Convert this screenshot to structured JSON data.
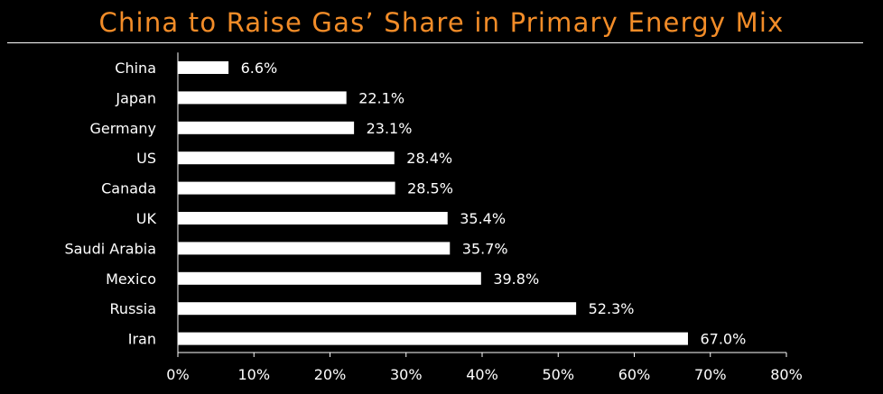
{
  "title": "China to Raise Gas’ Share in Primary Energy Mix",
  "colors": {
    "background": "#000000",
    "title": "#F28C28",
    "bars": "#FFFFFF",
    "text": "#FFFFFF"
  },
  "chart_data": {
    "type": "bar",
    "orientation": "horizontal",
    "title": "China to Raise Gas’ Share in Primary Energy Mix",
    "xlabel": "",
    "ylabel": "",
    "xlim": [
      0,
      80
    ],
    "x_ticks": [
      0,
      10,
      20,
      30,
      40,
      50,
      60,
      70,
      80
    ],
    "x_tick_labels": [
      "0%",
      "10%",
      "20%",
      "30%",
      "40%",
      "50%",
      "60%",
      "70%",
      "80%"
    ],
    "categories": [
      "China",
      "Japan",
      "Germany",
      "US",
      "Canada",
      "UK",
      "Saudi Arabia",
      "Mexico",
      "Russia",
      "Iran"
    ],
    "values": [
      6.6,
      22.1,
      23.1,
      28.4,
      28.5,
      35.4,
      35.7,
      39.8,
      52.3,
      67.0
    ],
    "data_labels": [
      "6.6%",
      "22.1%",
      "23.1%",
      "28.4%",
      "28.5%",
      "35.4%",
      "35.7%",
      "39.8%",
      "52.3%",
      "67.0%"
    ],
    "grid": false,
    "legend": "none"
  }
}
